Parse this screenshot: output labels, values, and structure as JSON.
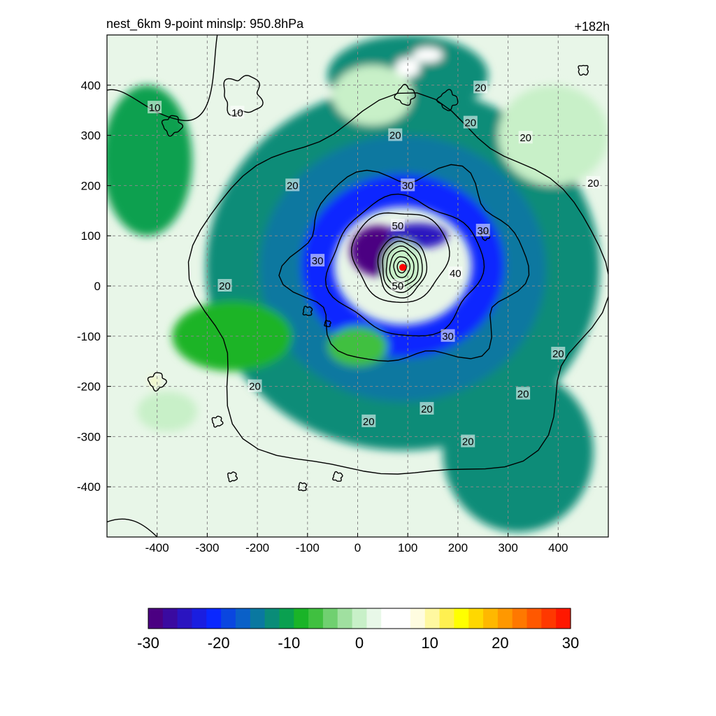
{
  "chart_data": {
    "type": "heatmap",
    "title_left": "nest_6km  9-point minslp: 950.8hPa",
    "title_right": "+182h",
    "xlabel": "",
    "ylabel": "",
    "xlim": [
      -500,
      500
    ],
    "ylim": [
      -500,
      500
    ],
    "x_ticks": [
      "-400",
      "-300",
      "-200",
      "-100",
      "0",
      "100",
      "200",
      "300",
      "400"
    ],
    "x_tick_values": [
      -400,
      -300,
      -200,
      -100,
      0,
      100,
      200,
      300,
      400
    ],
    "y_ticks": [
      "400",
      "300",
      "200",
      "100",
      "0",
      "-100",
      "-200",
      "-300",
      "-400"
    ],
    "y_tick_values": [
      400,
      300,
      200,
      100,
      0,
      -100,
      -200,
      -300,
      -400
    ],
    "grid": true,
    "storm_center": {
      "x": 90,
      "y": 37,
      "color": "#ff0000"
    },
    "shaded_field": {
      "colormap": [
        "#4b0082",
        "#3a0aa0",
        "#2a14c0",
        "#1a1ee0",
        "#0a28ff",
        "#0a46e0",
        "#0a60c8",
        "#0a78a0",
        "#0a8c78",
        "#0aa050",
        "#1ab428",
        "#40c040",
        "#70d070",
        "#a0e0a0",
        "#c8f0c8",
        "#e8f8e8",
        "#ffffff",
        "#ffffff",
        "#fffce0",
        "#fff8a0",
        "#fff050",
        "#ffff00",
        "#ffd800",
        "#ffb800",
        "#ff9800",
        "#ff7800",
        "#ff5800",
        "#ff3800",
        "#ff1800"
      ],
      "range": [
        -30,
        30
      ],
      "features": [
        {
          "kind": "ring",
          "cx": 90,
          "cy": 35,
          "rx": 330,
          "ry": 300,
          "value": -12
        },
        {
          "kind": "ring",
          "cx": 90,
          "cy": 35,
          "rx": 240,
          "ry": 220,
          "value": -16
        },
        {
          "kind": "ring",
          "cx": 90,
          "cy": 40,
          "rx": 170,
          "ry": 150,
          "value": -21
        },
        {
          "kind": "blob",
          "cx": 40,
          "cy": 70,
          "rx": 55,
          "ry": 50,
          "value": -29
        },
        {
          "kind": "blob",
          "cx": 120,
          "cy": 100,
          "rx": 60,
          "ry": 25,
          "value": -25
        },
        {
          "kind": "eye",
          "cx": 90,
          "cy": 40,
          "rx": 40,
          "ry": 50,
          "value": 0
        },
        {
          "kind": "blob",
          "cx": -420,
          "cy": 250,
          "rx": 90,
          "ry": 150,
          "value": -11
        },
        {
          "kind": "blob",
          "cx": -250,
          "cy": -100,
          "rx": 120,
          "ry": 70,
          "value": -9
        },
        {
          "kind": "blob",
          "cx": 320,
          "cy": -330,
          "rx": 150,
          "ry": 160,
          "value": -13
        },
        {
          "kind": "blob",
          "cx": 100,
          "cy": 420,
          "rx": 160,
          "ry": 80,
          "value": -12
        },
        {
          "kind": "blob",
          "cx": 390,
          "cy": 300,
          "rx": 110,
          "ry": 100,
          "value": 0
        },
        {
          "kind": "blob",
          "cx": 30,
          "cy": 380,
          "rx": 80,
          "ry": 60,
          "value": 0
        },
        {
          "kind": "blob",
          "cx": 0,
          "cy": -120,
          "rx": 60,
          "ry": 40,
          "value": -6
        },
        {
          "kind": "blob",
          "cx": -380,
          "cy": -250,
          "rx": 60,
          "ry": 40,
          "value": 0
        },
        {
          "kind": "blob",
          "cx": 100,
          "cy": 435,
          "rx": 25,
          "ry": 20,
          "value": 7
        },
        {
          "kind": "blob",
          "cx": 140,
          "cy": 460,
          "rx": 30,
          "ry": 15,
          "value": 6
        },
        {
          "kind": "blob",
          "cx": -405,
          "cy": -190,
          "rx": 8,
          "ry": 8,
          "value": 10
        }
      ]
    },
    "contour_labels": [
      {
        "text": "10",
        "x": -405,
        "y": 355
      },
      {
        "text": "10",
        "x": -240,
        "y": 345
      },
      {
        "text": "20",
        "x": -130,
        "y": 200
      },
      {
        "text": "20",
        "x": -265,
        "y": 0
      },
      {
        "text": "20",
        "x": -205,
        "y": -200
      },
      {
        "text": "20",
        "x": 75,
        "y": 300
      },
      {
        "text": "20",
        "x": 245,
        "y": 395
      },
      {
        "text": "20",
        "x": 225,
        "y": 325
      },
      {
        "text": "20",
        "x": 335,
        "y": 295
      },
      {
        "text": "20",
        "x": 470,
        "y": 205
      },
      {
        "text": "20",
        "x": 400,
        "y": -135
      },
      {
        "text": "20",
        "x": 330,
        "y": -215
      },
      {
        "text": "20",
        "x": 138,
        "y": -245
      },
      {
        "text": "20",
        "x": 22,
        "y": -270
      },
      {
        "text": "20",
        "x": 220,
        "y": -310
      },
      {
        "text": "30",
        "x": 100,
        "y": 200
      },
      {
        "text": "30",
        "x": 250,
        "y": 110
      },
      {
        "text": "30",
        "x": -80,
        "y": 50
      },
      {
        "text": "30",
        "x": 180,
        "y": -100
      },
      {
        "text": "40",
        "x": 195,
        "y": 25
      },
      {
        "text": "50",
        "x": 80,
        "y": 120
      },
      {
        "text": "50",
        "x": 80,
        "y": 0
      }
    ],
    "colorbar": {
      "ticks": [
        "-30",
        "-20",
        "-10",
        "0",
        "10",
        "20",
        "30"
      ],
      "tick_values": [
        -30,
        -20,
        -10,
        0,
        10,
        20,
        30
      ],
      "min": -30,
      "max": 30
    }
  }
}
